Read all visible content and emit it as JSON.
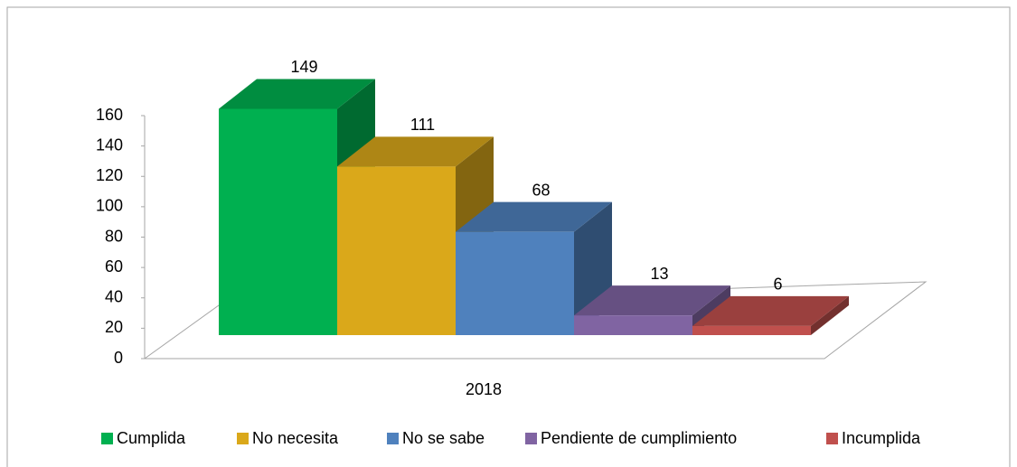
{
  "chart_data": {
    "type": "bar3d",
    "categories": [
      "2018"
    ],
    "series": [
      {
        "name": "Cumplida",
        "color": "#00b050",
        "values": [
          149
        ]
      },
      {
        "name": "No necesita",
        "color": "#daa81a",
        "values": [
          111
        ]
      },
      {
        "name": "No se sabe",
        "color": "#4f81bd",
        "values": [
          68
        ]
      },
      {
        "name": "Pendiente de cumplimiento",
        "color": "#8064a2",
        "values": [
          13
        ]
      },
      {
        "name": "Incumplida",
        "color": "#c0504d",
        "values": [
          6
        ]
      }
    ],
    "ylim": [
      0,
      160
    ],
    "yticks": [
      0,
      20,
      40,
      60,
      80,
      100,
      120,
      140,
      160
    ],
    "legend": "bottom"
  }
}
